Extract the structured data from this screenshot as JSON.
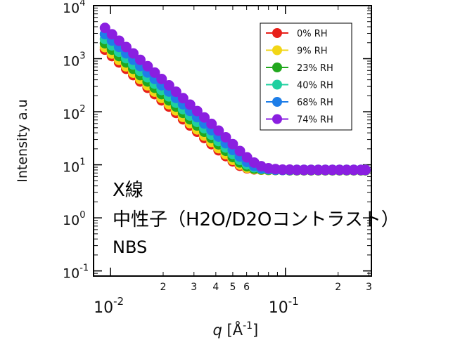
{
  "header_text": "",
  "annotations": {
    "xray": "X線",
    "neutron": "中性子（H2O/D2Oコントラスト）",
    "nbs": "NBS"
  },
  "chart_data": {
    "type": "scatter",
    "xscale": "log",
    "yscale": "log",
    "xlim": [
      0.008,
      0.31
    ],
    "ylim": [
      0.08,
      10000
    ],
    "xlabel": "q [Å-1]",
    "ylabel": "Intensity a.u",
    "x_major_ticks": [
      {
        "value": 0.01,
        "label": "10-2"
      },
      {
        "value": 0.1,
        "label": "10-1"
      }
    ],
    "x_minor_ticks": [
      {
        "value": 0.02,
        "label": "2"
      },
      {
        "value": 0.03,
        "label": "3"
      },
      {
        "value": 0.04,
        "label": "4"
      },
      {
        "value": 0.05,
        "label": "5"
      },
      {
        "value": 0.06,
        "label": "6"
      },
      {
        "value": 0.2,
        "label": "2"
      },
      {
        "value": 0.3,
        "label": "3"
      }
    ],
    "y_major_ticks": [
      {
        "value": 0.1,
        "label": "10-1"
      },
      {
        "value": 1,
        "label": "100"
      },
      {
        "value": 10,
        "label": "101"
      },
      {
        "value": 100,
        "label": "102"
      },
      {
        "value": 1000,
        "label": "103"
      },
      {
        "value": 10000,
        "label": "104"
      }
    ],
    "legend_position": "top-right",
    "x": [
      0.0093,
      0.0102,
      0.0112,
      0.0123,
      0.0135,
      0.0148,
      0.0163,
      0.0179,
      0.0196,
      0.0216,
      0.0237,
      0.026,
      0.0285,
      0.0313,
      0.0344,
      0.0378,
      0.0415,
      0.0456,
      0.05,
      0.0549,
      0.0603,
      0.0662,
      0.0727,
      0.0799,
      0.0877,
      0.0963,
      0.1058,
      0.1162,
      0.1276,
      0.1401,
      0.1539,
      0.169,
      0.1856,
      0.2038,
      0.2238,
      0.2458,
      0.27,
      0.2865
    ],
    "series": [
      {
        "name": "0% RH",
        "color": "#e8201a",
        "values": [
          1480,
          1120,
          850,
          645,
          490,
          372,
          283,
          215,
          164,
          125,
          95,
          72,
          55,
          42,
          32,
          24.5,
          18.8,
          14.6,
          11.6,
          9.6,
          8.6,
          8.2,
          8.1,
          8.0,
          8.0,
          8.0,
          7.9,
          7.9,
          7.9,
          7.9,
          7.9,
          7.9,
          7.9,
          7.9,
          7.9,
          7.9,
          7.9,
          7.9
        ]
      },
      {
        "name": "9% RH",
        "color": "#f2d616",
        "values": [
          1650,
          1250,
          948,
          718,
          545,
          414,
          315,
          239,
          182,
          139,
          106,
          80,
          61,
          46.5,
          35.5,
          27,
          20.6,
          15.9,
          12.4,
          10.1,
          8.8,
          8.3,
          8.1,
          8.0,
          8.0,
          8.0,
          7.9,
          7.9,
          7.9,
          7.9,
          7.9,
          7.9,
          7.9,
          7.9,
          7.9,
          7.9,
          7.9,
          7.9
        ]
      },
      {
        "name": "23% RH",
        "color": "#22a81e",
        "values": [
          1950,
          1478,
          1120,
          850,
          645,
          490,
          372,
          283,
          215,
          164,
          125,
          95,
          72,
          55,
          42,
          32,
          24.3,
          18.4,
          14,
          11.1,
          9.4,
          8.5,
          8.2,
          8.1,
          8.0,
          8.0,
          7.9,
          7.9,
          7.9,
          7.9,
          7.9,
          7.9,
          7.9,
          7.9,
          7.9,
          7.9,
          7.9,
          7.9
        ]
      },
      {
        "name": "40% RH",
        "color": "#1fd0a0",
        "values": [
          2350,
          1780,
          1350,
          1023,
          776,
          588,
          446,
          338,
          257,
          195,
          148,
          112,
          85,
          64.5,
          49,
          37,
          28,
          21.2,
          16,
          12.4,
          10.2,
          9.0,
          8.4,
          8.2,
          8.1,
          8.0,
          8.0,
          8.0,
          8.0,
          8.0,
          8.0,
          8.0,
          8.0,
          8.0,
          8.0,
          8.0,
          8.0,
          8.0
        ]
      },
      {
        "name": "68% RH",
        "color": "#1e7ee8",
        "values": [
          2900,
          2198,
          1665,
          1262,
          956,
          724,
          549,
          416,
          316,
          240,
          182,
          138,
          104,
          79,
          60,
          45,
          34,
          25.5,
          19,
          14.3,
          11.3,
          9.5,
          8.6,
          8.3,
          8.1,
          8.0,
          8.0,
          8.0,
          8.0,
          8.0,
          8.0,
          8.0,
          8.0,
          8.0,
          8.0,
          8.0,
          8.0,
          8.0
        ]
      },
      {
        "name": "74% RH",
        "color": "#8a1fe0",
        "values": [
          3800,
          2880,
          2182,
          1654,
          1254,
          950,
          720,
          546,
          414,
          314,
          238,
          180,
          136,
          103,
          78,
          59,
          44,
          33,
          24.5,
          18.2,
          13.8,
          11,
          9.4,
          8.6,
          8.3,
          8.1,
          8.1,
          8.0,
          8.0,
          8.0,
          8.0,
          8.0,
          8.0,
          8.0,
          8.0,
          8.0,
          8.0,
          8.0
        ]
      }
    ]
  }
}
